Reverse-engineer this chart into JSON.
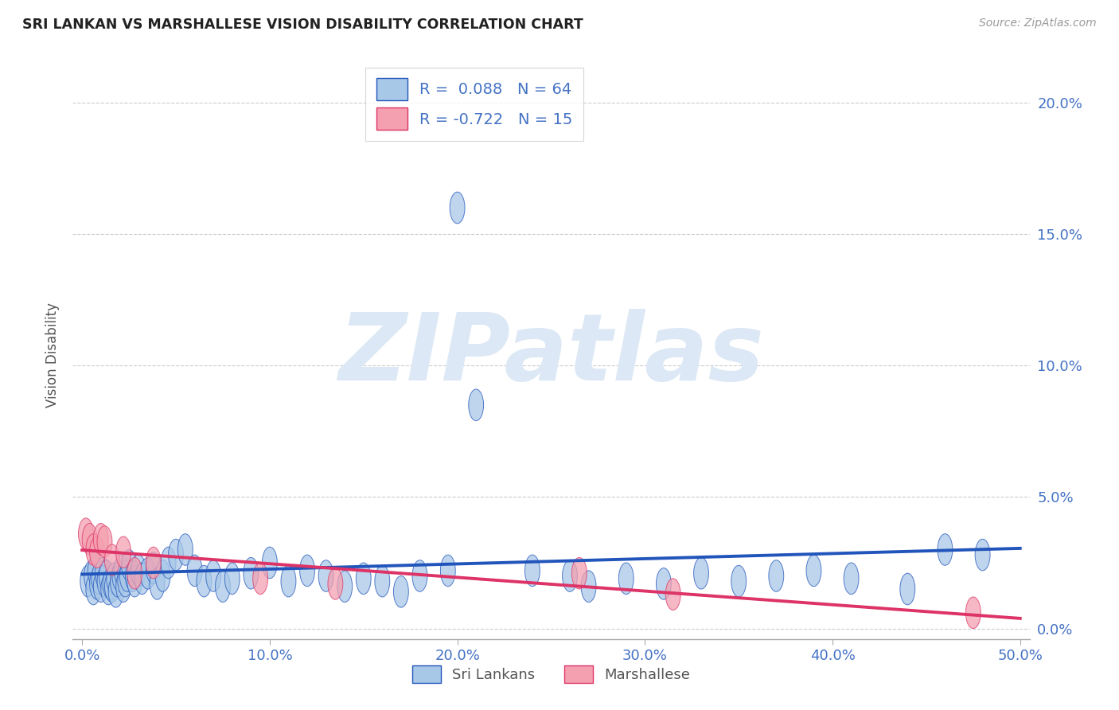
{
  "title": "SRI LANKAN VS MARSHALLESE VISION DISABILITY CORRELATION CHART",
  "source": "Source: ZipAtlas.com",
  "xlabel_ticks": [
    "0.0%",
    "10.0%",
    "20.0%",
    "30.0%",
    "40.0%",
    "50.0%"
  ],
  "xlabel_vals": [
    0.0,
    0.1,
    0.2,
    0.3,
    0.4,
    0.5
  ],
  "ylabel": "Vision Disability",
  "ylabel_ticks": [
    "0.0%",
    "5.0%",
    "10.0%",
    "15.0%",
    "20.0%"
  ],
  "ylabel_vals": [
    0.0,
    0.05,
    0.1,
    0.15,
    0.2
  ],
  "xlim": [
    -0.005,
    0.505
  ],
  "ylim": [
    -0.004,
    0.212
  ],
  "sri_lankans_R": 0.088,
  "sri_lankans_N": 64,
  "marshallese_R": -0.722,
  "marshallese_N": 15,
  "legend_label_sri": "Sri Lankans",
  "legend_label_mar": "Marshallese",
  "color_sri": "#a8c8e8",
  "color_mar": "#f4a0b0",
  "line_color_sri": "#2255bb",
  "line_color_mar": "#dd3366",
  "watermark": "ZIPatlas",
  "watermark_color": "#dce8f5",
  "grid_color": "#cccccc",
  "title_color": "#222222",
  "axis_tick_color": "#4472c4",
  "sri_x": [
    0.003,
    0.005,
    0.006,
    0.007,
    0.008,
    0.009,
    0.01,
    0.011,
    0.012,
    0.013,
    0.014,
    0.015,
    0.016,
    0.017,
    0.018,
    0.019,
    0.02,
    0.021,
    0.022,
    0.023,
    0.024,
    0.025,
    0.027,
    0.028,
    0.03,
    0.032,
    0.035,
    0.038,
    0.04,
    0.043,
    0.046,
    0.05,
    0.055,
    0.06,
    0.065,
    0.07,
    0.075,
    0.08,
    0.09,
    0.1,
    0.11,
    0.12,
    0.13,
    0.14,
    0.15,
    0.16,
    0.17,
    0.18,
    0.195,
    0.2,
    0.21,
    0.24,
    0.26,
    0.27,
    0.29,
    0.31,
    0.33,
    0.35,
    0.37,
    0.39,
    0.41,
    0.44,
    0.46,
    0.48
  ],
  "sri_y": [
    0.018,
    0.02,
    0.015,
    0.022,
    0.017,
    0.019,
    0.016,
    0.021,
    0.018,
    0.02,
    0.015,
    0.017,
    0.016,
    0.019,
    0.014,
    0.018,
    0.02,
    0.022,
    0.016,
    0.018,
    0.02,
    0.024,
    0.02,
    0.018,
    0.022,
    0.019,
    0.021,
    0.023,
    0.017,
    0.02,
    0.025,
    0.028,
    0.03,
    0.022,
    0.018,
    0.02,
    0.016,
    0.019,
    0.021,
    0.025,
    0.018,
    0.022,
    0.02,
    0.016,
    0.019,
    0.018,
    0.014,
    0.02,
    0.022,
    0.16,
    0.085,
    0.022,
    0.02,
    0.016,
    0.019,
    0.017,
    0.021,
    0.018,
    0.02,
    0.022,
    0.019,
    0.015,
    0.03,
    0.028
  ],
  "mar_x": [
    0.002,
    0.004,
    0.006,
    0.008,
    0.01,
    0.012,
    0.016,
    0.022,
    0.028,
    0.038,
    0.095,
    0.135,
    0.265,
    0.315,
    0.475
  ],
  "mar_y": [
    0.036,
    0.034,
    0.03,
    0.029,
    0.034,
    0.033,
    0.026,
    0.029,
    0.021,
    0.025,
    0.019,
    0.017,
    0.021,
    0.013,
    0.006
  ]
}
